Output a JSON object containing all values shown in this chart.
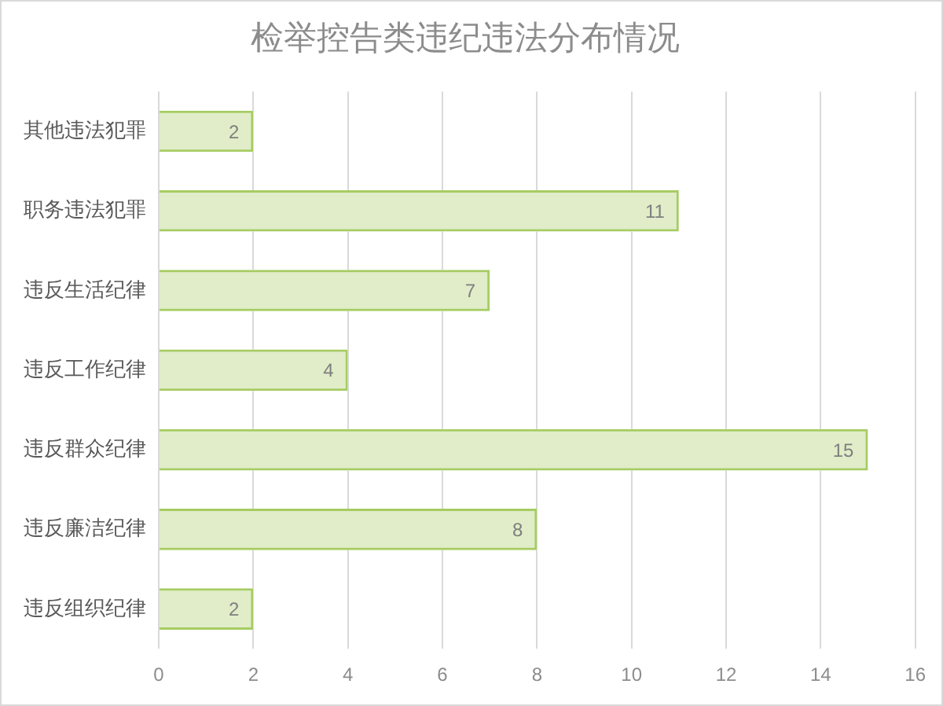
{
  "chart_data": {
    "type": "bar",
    "orientation": "horizontal",
    "title": "检举控告类违纪违法分布情况",
    "categories": [
      "其他违法犯罪",
      "职务违法犯罪",
      "违反生活纪律",
      "违反工作纪律",
      "违反群众纪律",
      "违反廉洁纪律",
      "违反组织纪律"
    ],
    "values": [
      2,
      11,
      7,
      4,
      15,
      8,
      2
    ],
    "color": "#a6cc62",
    "xlim": [
      0,
      16
    ],
    "xticks": [
      0,
      2,
      4,
      6,
      8,
      10,
      12,
      14,
      16
    ],
    "grid": "x",
    "data_labels": true
  }
}
